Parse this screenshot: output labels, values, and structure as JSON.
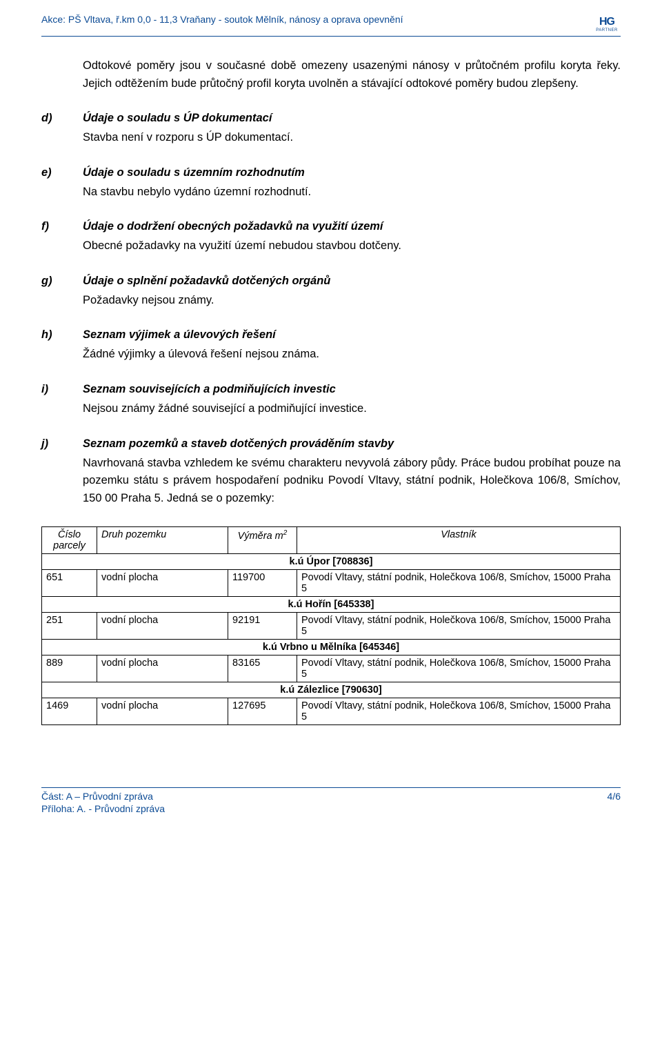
{
  "header": {
    "title": "Akce: PŠ Vltava, ř.km 0,0 - 11,3 Vraňany - soutok Mělník, nánosy a oprava opevnění",
    "logo_top": "HG",
    "logo_bottom": "PARTNER"
  },
  "intro": "Odtokové poměry jsou v současné době omezeny usazenými nánosy v průtočném profilu koryta řeky. Jejich odtěžením bude průtočný profil koryta uvolněn a stávající odtokové poměry budou zlepšeny.",
  "sections": {
    "d": {
      "letter": "d)",
      "heading": "Údaje o souladu s ÚP dokumentací",
      "text": "Stavba není v rozporu s ÚP dokumentací."
    },
    "e": {
      "letter": "e)",
      "heading": "Údaje o souladu s územním rozhodnutím",
      "text": "Na stavbu nebylo vydáno územní rozhodnutí."
    },
    "f": {
      "letter": "f)",
      "heading": "Údaje o dodržení obecných požadavků na využití území",
      "text": "Obecné požadavky na využití území nebudou stavbou dotčeny."
    },
    "g": {
      "letter": "g)",
      "heading": "Údaje o splnění požadavků dotčených orgánů",
      "text": "Požadavky nejsou známy."
    },
    "h": {
      "letter": "h)",
      "heading": "Seznam výjimek a úlevových řešení",
      "text": "Žádné výjimky a úlevová řešení nejsou známa."
    },
    "i": {
      "letter": "i)",
      "heading": "Seznam souvisejících a podmiňujících investic",
      "text": "Nejsou známy žádné související a podmiňující investice."
    },
    "j": {
      "letter": "j)",
      "heading": "Seznam pozemků a staveb dotčených prováděním stavby",
      "text": "Navrhovaná stavba vzhledem ke svému charakteru nevyvolá zábory půdy. Práce budou probíhat pouze na pozemku státu s právem hospodaření podniku Povodí Vltavy, státní podnik, Holečkova 106/8, Smíchov, 150 00 Praha 5. Jedná se o pozemky:"
    }
  },
  "table": {
    "headers": {
      "cislo": "Číslo parcely",
      "druh": "Druh pozemku",
      "vymera": "Výměra m",
      "vymera_sup": "2",
      "vlastnik": "Vlastník"
    },
    "owner": "Povodí Vltavy, státní podnik, Holečkova 106/8, Smíchov, 15000 Praha 5",
    "ku1": "k.ú Úpor [708836]",
    "r1": {
      "cislo": "651",
      "druh": "vodní plocha",
      "vymera": "119700"
    },
    "ku2": "k.ú Hořín [645338]",
    "r2": {
      "cislo": "251",
      "druh": "vodní plocha",
      "vymera": "92191"
    },
    "ku3": "k.ú Vrbno u Mělníka [645346]",
    "r3": {
      "cislo": "889",
      "druh": "vodní plocha",
      "vymera": "83165"
    },
    "ku4": "k.ú Zálezlice [790630]",
    "r4": {
      "cislo": "1469",
      "druh": "vodní plocha",
      "vymera": "127695"
    }
  },
  "footer": {
    "left": "Část: A – Průvodní zpráva",
    "right": "4/6",
    "sub": "Příloha: A. - Průvodní zpráva"
  }
}
